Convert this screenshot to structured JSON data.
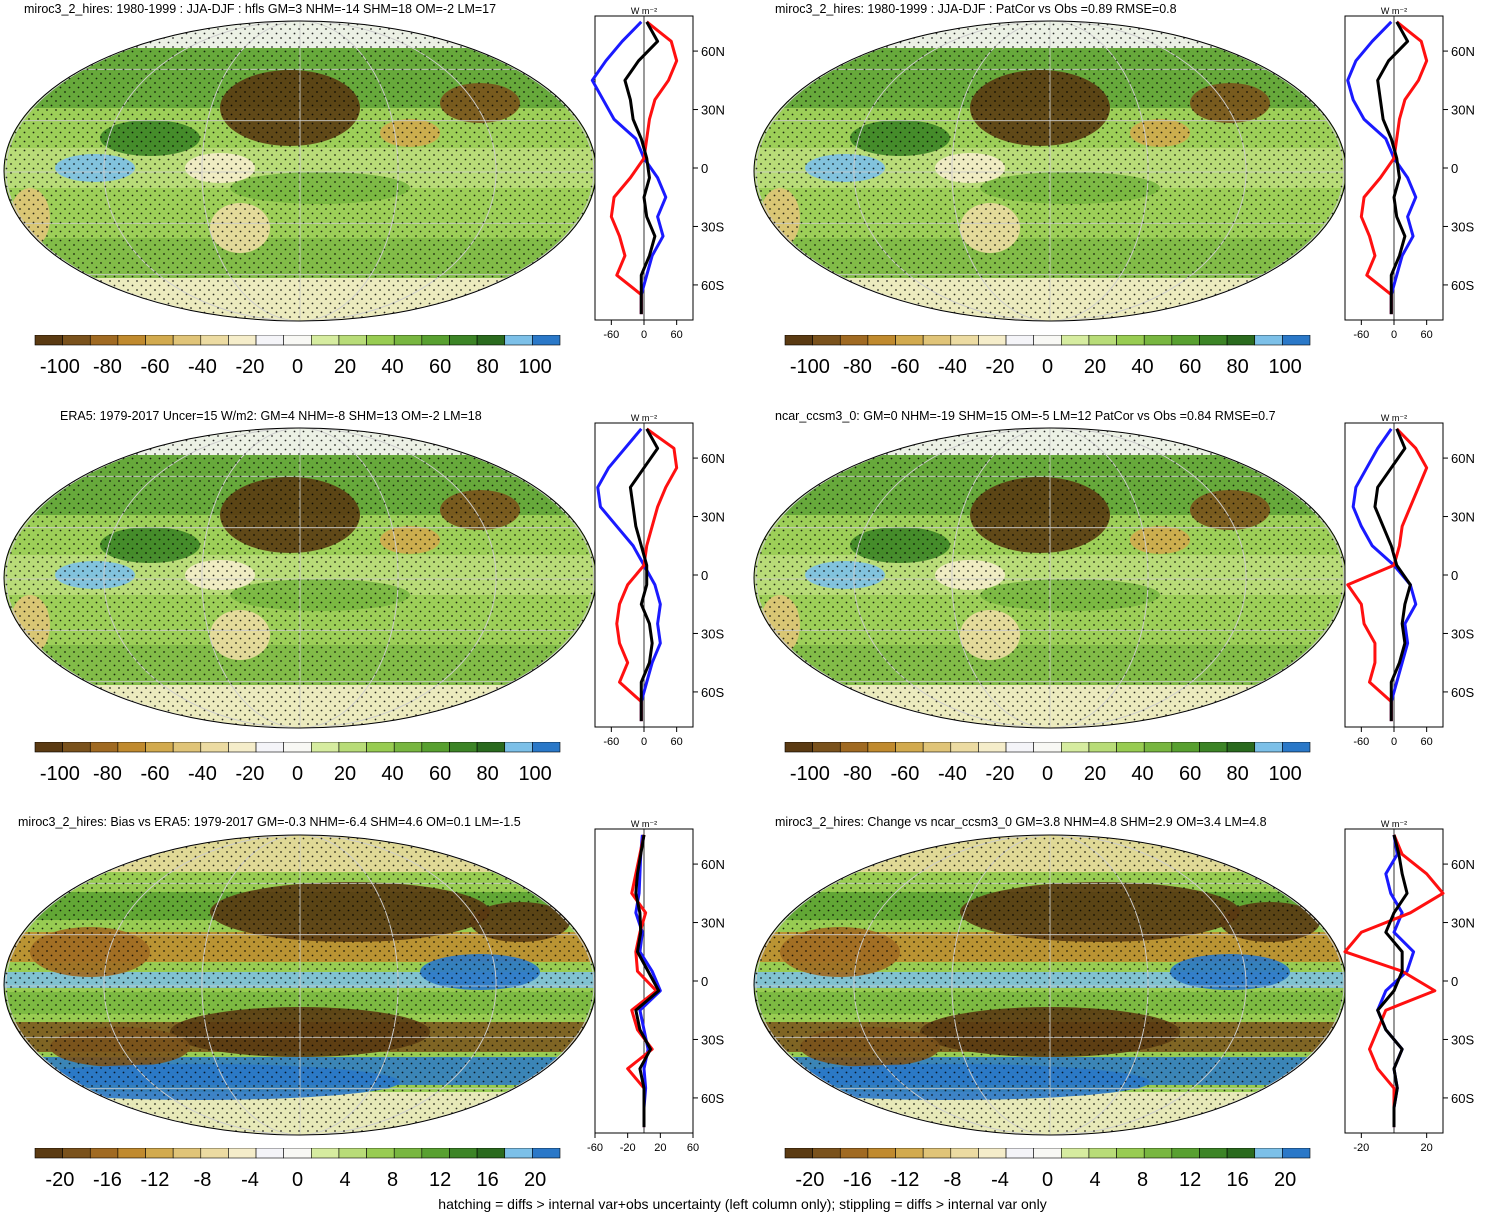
{
  "footer": "hatching = diffs > internal var+obs uncertainty (left column only); stippling = diffs > internal var only",
  "colors": {
    "scale": [
      "#5a3a12",
      "#7a521c",
      "#a06a22",
      "#c08a2e",
      "#d2aa4e",
      "#e0c478",
      "#ecdba2",
      "#f5edca",
      "#f4f4f8",
      "#f8f8f4",
      "#d6eca0",
      "#b8dc78",
      "#98cc52",
      "#78b640",
      "#58a030",
      "#3c8426",
      "#2a6a1e",
      "#7cc0e8",
      "#2a78c8"
    ],
    "profile_blue": "#1a1aff",
    "profile_red": "#ff1010",
    "profile_black": "#000000"
  },
  "panels": [
    {
      "title": "miroc3_2_hires: 1980-1999 : JJA-DJF : hfls GM=3 NHM=-14 SHM=18 OM=-2 LM=17",
      "colorbar_labels": [
        "-100",
        "-80",
        "-60",
        "-40",
        "-20",
        "0",
        "20",
        "40",
        "60",
        "80",
        "100"
      ],
      "profile_unit": "W m⁻²",
      "lat_labels": [
        "60N",
        "30N",
        "0",
        "30S",
        "60S"
      ],
      "x_ticks": [
        "-60",
        "0",
        "60"
      ],
      "x_range": [
        -90,
        90
      ]
    },
    {
      "title": "miroc3_2_hires: 1980-1999 : JJA-DJF : PatCor vs Obs =0.89 RMSE=0.8",
      "colorbar_labels": [
        "-100",
        "-80",
        "-60",
        "-40",
        "-20",
        "0",
        "20",
        "40",
        "60",
        "80",
        "100"
      ],
      "profile_unit": "W m⁻²",
      "lat_labels": [
        "60N",
        "30N",
        "0",
        "30S",
        "60S"
      ],
      "x_ticks": [
        "-60",
        "0",
        "60"
      ],
      "x_range": [
        -90,
        90
      ]
    },
    {
      "title": "ERA5: 1979-2017 Uncer=15 W/m2: GM=4 NHM=-8 SHM=13 OM=-2 LM=18",
      "colorbar_labels": [
        "-100",
        "-80",
        "-60",
        "-40",
        "-20",
        "0",
        "20",
        "40",
        "60",
        "80",
        "100"
      ],
      "profile_unit": "W m⁻²",
      "lat_labels": [
        "60N",
        "30N",
        "0",
        "30S",
        "60S"
      ],
      "x_ticks": [
        "-60",
        "0",
        "60"
      ],
      "x_range": [
        -90,
        90
      ]
    },
    {
      "title": "ncar_ccsm3_0: GM=0 NHM=-19 SHM=15 OM=-5 LM=12 PatCor vs Obs =0.84 RMSE=0.7",
      "colorbar_labels": [
        "-100",
        "-80",
        "-60",
        "-40",
        "-20",
        "0",
        "20",
        "40",
        "60",
        "80",
        "100"
      ],
      "profile_unit": "W m⁻²",
      "lat_labels": [
        "60N",
        "30N",
        "0",
        "30S",
        "60S"
      ],
      "x_ticks": [
        "-60",
        "0",
        "60"
      ],
      "x_range": [
        -90,
        90
      ]
    },
    {
      "title": "miroc3_2_hires: Bias vs ERA5: 1979-2017 GM=-0.3 NHM=-6.4 SHM=4.6 OM=0.1 LM=-1.5",
      "colorbar_labels": [
        "-20",
        "-16",
        "-12",
        "-8",
        "-4",
        "0",
        "4",
        "8",
        "12",
        "16",
        "20"
      ],
      "profile_unit": "W m⁻²",
      "lat_labels": [
        "60N",
        "30N",
        "0",
        "30S",
        "60S"
      ],
      "x_ticks": [
        "-60",
        "-20",
        "20",
        "60"
      ],
      "x_range": [
        -60,
        60
      ]
    },
    {
      "title": "miroc3_2_hires: Change vs ncar_ccsm3_0 GM=3.8 NHM=4.8 SHM=2.9 OM=3.4 LM=4.8",
      "colorbar_labels": [
        "-20",
        "-16",
        "-12",
        "-8",
        "-4",
        "0",
        "4",
        "8",
        "12",
        "16",
        "20"
      ],
      "profile_unit": "W m⁻²",
      "lat_labels": [
        "60N",
        "30N",
        "0",
        "30S",
        "60S"
      ],
      "x_ticks": [
        "-20",
        "20"
      ],
      "x_range": [
        -30,
        30
      ]
    }
  ],
  "chart_data": [
    {
      "type": "line",
      "title": "miroc3_2_hires: 1980-1999 : JJA-DJF : hfls GM=3 NHM=-14 SHM=18 OM=-2 LM=17",
      "xlabel": "W m⁻²",
      "ylim": [
        -78,
        78
      ],
      "xlim": [
        -90,
        90
      ],
      "y_latitude": [
        75,
        65,
        55,
        45,
        35,
        25,
        15,
        5,
        -5,
        -15,
        -25,
        -35,
        -45,
        -55,
        -65,
        -75
      ],
      "series": [
        {
          "color": "blue",
          "values": [
            -5,
            -40,
            -70,
            -95,
            -75,
            -55,
            -15,
            0,
            25,
            40,
            25,
            35,
            15,
            5,
            -5,
            -5
          ]
        },
        {
          "color": "red",
          "values": [
            5,
            50,
            60,
            45,
            20,
            10,
            5,
            0,
            -25,
            -55,
            -60,
            -45,
            -35,
            -50,
            -5,
            -5
          ]
        },
        {
          "color": "black",
          "values": [
            5,
            25,
            -10,
            -35,
            -25,
            -20,
            -5,
            5,
            10,
            0,
            5,
            20,
            10,
            -5,
            -5,
            -5
          ]
        }
      ]
    },
    {
      "type": "line",
      "title": "miroc3_2_hires: 1980-1999 : JJA-DJF : PatCor vs Obs =0.89 RMSE=0.8",
      "xlabel": "W m⁻²",
      "ylim": [
        -78,
        78
      ],
      "xlim": [
        -90,
        90
      ],
      "y_latitude": [
        75,
        65,
        55,
        45,
        35,
        25,
        15,
        5,
        -5,
        -15,
        -25,
        -35,
        -45,
        -55,
        -65,
        -75
      ],
      "series": [
        {
          "color": "blue",
          "values": [
            -5,
            -40,
            -70,
            -85,
            -75,
            -55,
            -15,
            0,
            25,
            40,
            25,
            35,
            15,
            5,
            -5,
            -5
          ]
        },
        {
          "color": "red",
          "values": [
            5,
            50,
            60,
            45,
            20,
            10,
            5,
            0,
            -25,
            -55,
            -60,
            -45,
            -35,
            -50,
            -5,
            -5
          ]
        },
        {
          "color": "black",
          "values": [
            5,
            25,
            -10,
            -30,
            -25,
            -20,
            -5,
            5,
            10,
            0,
            5,
            20,
            10,
            -5,
            -5,
            -5
          ]
        }
      ]
    },
    {
      "type": "line",
      "title": "ERA5: 1979-2017 Uncer=15 W/m2: GM=4 NHM=-8 SHM=13 OM=-2 LM=18",
      "xlabel": "W m⁻²",
      "ylim": [
        -78,
        78
      ],
      "xlim": [
        -90,
        90
      ],
      "y_latitude": [
        75,
        65,
        55,
        45,
        35,
        25,
        15,
        5,
        -5,
        -15,
        -25,
        -35,
        -45,
        -55,
        -65,
        -75
      ],
      "series": [
        {
          "color": "blue",
          "values": [
            -5,
            -35,
            -65,
            -85,
            -80,
            -50,
            -20,
            0,
            20,
            30,
            25,
            30,
            15,
            5,
            -5,
            -5
          ]
        },
        {
          "color": "red",
          "values": [
            5,
            55,
            60,
            40,
            25,
            15,
            5,
            0,
            -30,
            -45,
            -50,
            -45,
            -30,
            -45,
            -5,
            -5
          ]
        },
        {
          "color": "black",
          "values": [
            5,
            25,
            0,
            -25,
            -20,
            -15,
            -5,
            5,
            5,
            -5,
            10,
            15,
            10,
            -5,
            -5,
            -5
          ]
        }
      ]
    },
    {
      "type": "line",
      "title": "ncar_ccsm3_0: GM=0 NHM=-19 SHM=15 OM=-5 LM=12 PatCor vs Obs =0.84 RMSE=0.7",
      "xlabel": "W m⁻²",
      "ylim": [
        -78,
        78
      ],
      "xlim": [
        -90,
        90
      ],
      "y_latitude": [
        75,
        65,
        55,
        45,
        35,
        25,
        15,
        5,
        -5,
        -15,
        -25,
        -35,
        -45,
        -55,
        -65,
        -75
      ],
      "series": [
        {
          "color": "blue",
          "values": [
            -5,
            -30,
            -50,
            -70,
            -75,
            -60,
            -40,
            0,
            30,
            40,
            20,
            25,
            15,
            5,
            -5,
            -5
          ]
        },
        {
          "color": "red",
          "values": [
            5,
            40,
            60,
            45,
            30,
            15,
            10,
            0,
            -85,
            -60,
            -55,
            -35,
            -35,
            -45,
            -5,
            -5
          ]
        },
        {
          "color": "black",
          "values": [
            5,
            20,
            -5,
            -30,
            -35,
            -20,
            -5,
            5,
            30,
            20,
            15,
            20,
            10,
            -5,
            -5,
            -5
          ]
        }
      ]
    },
    {
      "type": "line",
      "title": "miroc3_2_hires: Bias vs ERA5: 1979-2017 GM=-0.3 NHM=-6.4 SHM=4.6 OM=0.1 LM=-1.5",
      "xlabel": "W m⁻²",
      "ylim": [
        -78,
        78
      ],
      "xlim": [
        -60,
        60
      ],
      "y_latitude": [
        75,
        65,
        55,
        45,
        35,
        25,
        15,
        5,
        -5,
        -15,
        -25,
        -35,
        -45,
        -55,
        -65,
        -75
      ],
      "series": [
        {
          "color": "blue",
          "values": [
            -2,
            -4,
            -5,
            -6,
            -10,
            -2,
            -5,
            10,
            20,
            -5,
            0,
            5,
            0,
            2,
            0,
            0
          ]
        },
        {
          "color": "red",
          "values": [
            0,
            -5,
            -10,
            -15,
            2,
            -5,
            -10,
            -8,
            15,
            -15,
            -8,
            10,
            -20,
            0,
            0,
            0
          ]
        },
        {
          "color": "black",
          "values": [
            0,
            -4,
            -8,
            -10,
            -5,
            -4,
            -8,
            5,
            18,
            -10,
            -5,
            8,
            -5,
            0,
            0,
            0
          ]
        }
      ]
    },
    {
      "type": "line",
      "title": "miroc3_2_hires: Change vs ncar_ccsm3_0 GM=3.8 NHM=4.8 SHM=2.9 OM=3.4 LM=4.8",
      "xlabel": "W m⁻²",
      "ylim": [
        -78,
        78
      ],
      "xlim": [
        -30,
        30
      ],
      "y_latitude": [
        75,
        65,
        55,
        45,
        35,
        25,
        15,
        5,
        -5,
        -15,
        -25,
        -35,
        -45,
        -55,
        -65,
        -75
      ],
      "series": [
        {
          "color": "blue",
          "values": [
            0,
            2,
            -5,
            -2,
            5,
            0,
            12,
            8,
            -5,
            -10,
            -5,
            5,
            0,
            2,
            0,
            0
          ]
        },
        {
          "color": "red",
          "values": [
            0,
            5,
            20,
            30,
            10,
            -20,
            -30,
            5,
            25,
            -5,
            -10,
            -15,
            -10,
            0,
            0,
            0
          ]
        },
        {
          "color": "black",
          "values": [
            0,
            3,
            5,
            8,
            0,
            -5,
            5,
            5,
            0,
            -10,
            -5,
            5,
            0,
            2,
            0,
            0
          ]
        }
      ]
    }
  ]
}
